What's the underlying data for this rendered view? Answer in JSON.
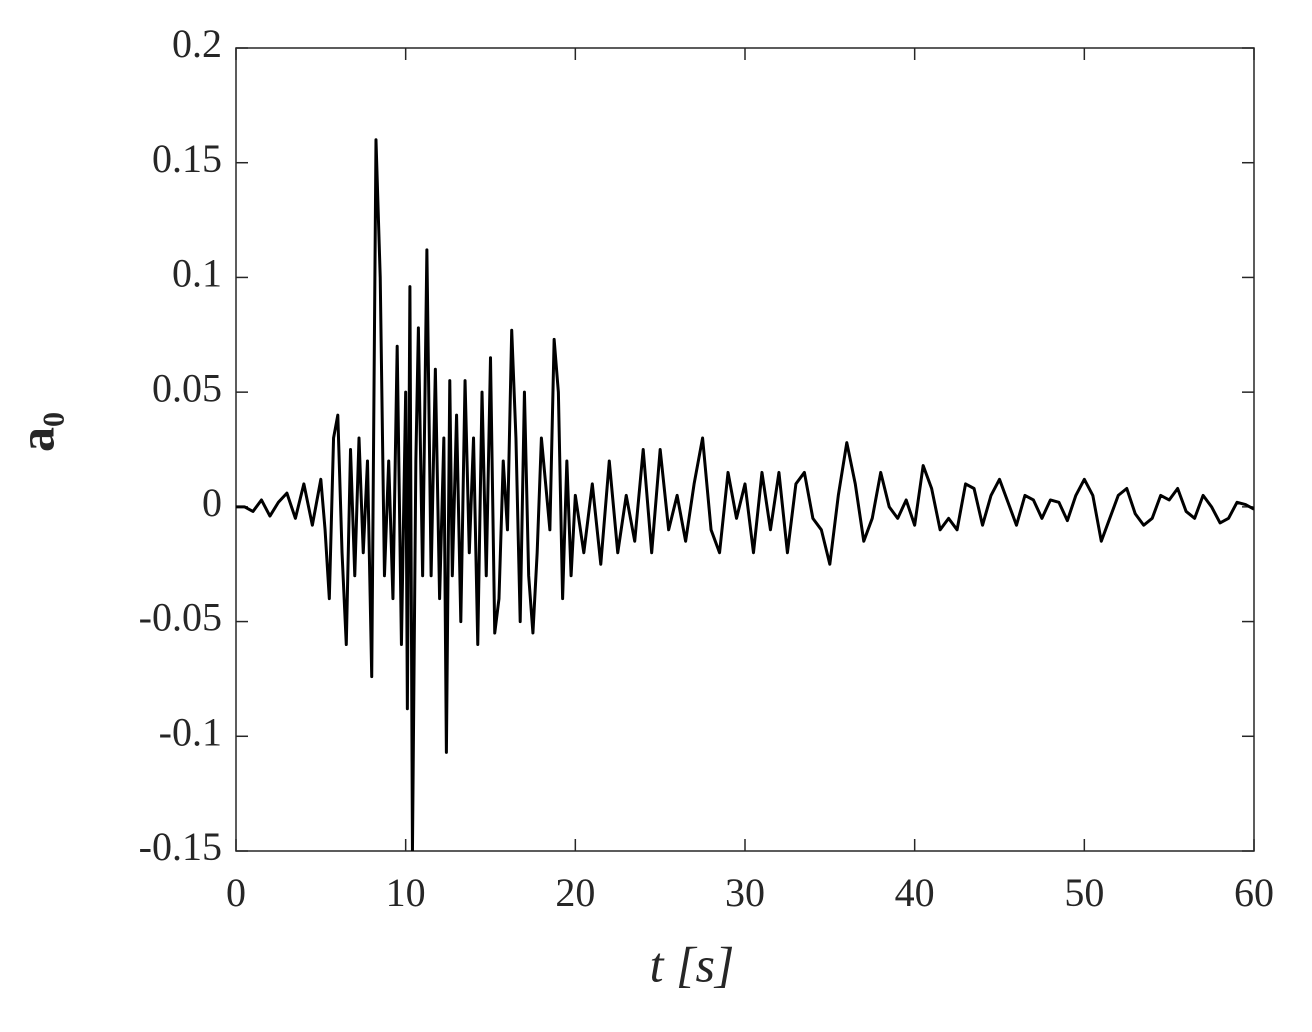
{
  "chart_data": {
    "type": "line",
    "xlabel": "t [s]",
    "ylabel": "a₀",
    "color": "#000000",
    "xlim": [
      0,
      60
    ],
    "ylim": [
      -0.15,
      0.2
    ],
    "xticks": [
      0,
      10,
      20,
      30,
      40,
      50,
      60
    ],
    "yticks": [
      -0.15,
      -0.1,
      -0.05,
      0,
      0.05,
      0.1,
      0.15,
      0.2
    ],
    "x": [
      0,
      0.5,
      1,
      1.5,
      2,
      2.5,
      3,
      3.5,
      4,
      4.5,
      5,
      5.25,
      5.5,
      5.75,
      6,
      6.25,
      6.5,
      6.75,
      7,
      7.25,
      7.5,
      7.75,
      8,
      8.25,
      8.5,
      8.75,
      9,
      9.25,
      9.5,
      9.75,
      10,
      10.1,
      10.25,
      10.4,
      10.6,
      10.75,
      11,
      11.25,
      11.5,
      11.75,
      12,
      12.25,
      12.4,
      12.6,
      12.75,
      13,
      13.25,
      13.5,
      13.75,
      14,
      14.25,
      14.5,
      14.75,
      15,
      15.25,
      15.5,
      15.75,
      16,
      16.25,
      16.5,
      16.75,
      17,
      17.25,
      17.5,
      17.75,
      18,
      18.25,
      18.5,
      18.75,
      19,
      19.25,
      19.5,
      19.75,
      20,
      20.5,
      21,
      21.5,
      22,
      22.5,
      23,
      23.5,
      24,
      24.5,
      25,
      25.5,
      26,
      26.5,
      27,
      27.5,
      28,
      28.5,
      29,
      29.5,
      30,
      30.5,
      31,
      31.5,
      32,
      32.5,
      33,
      33.5,
      34,
      34.5,
      35,
      35.5,
      36,
      36.5,
      37,
      37.5,
      38,
      38.5,
      39,
      39.5,
      40,
      40.5,
      41,
      41.5,
      42,
      42.5,
      43,
      43.5,
      44,
      44.5,
      45,
      45.5,
      46,
      46.5,
      47,
      47.5,
      48,
      48.5,
      49,
      49.5,
      50,
      50.5,
      51,
      51.5,
      52,
      52.5,
      53,
      53.5,
      54,
      54.5,
      55,
      55.5,
      56,
      56.5,
      57,
      57.5,
      58,
      58.5,
      59,
      59.5,
      60
    ],
    "values": [
      0,
      0,
      -0.002,
      0.003,
      -0.004,
      0.002,
      0.006,
      -0.005,
      0.01,
      -0.008,
      0.012,
      -0.01,
      -0.04,
      0.03,
      0.04,
      -0.02,
      -0.06,
      0.025,
      -0.03,
      0.03,
      -0.02,
      0.02,
      -0.074,
      0.16,
      0.1,
      -0.03,
      0.02,
      -0.04,
      0.07,
      -0.06,
      0.05,
      -0.088,
      0.096,
      -0.15,
      0.02,
      0.078,
      -0.03,
      0.112,
      -0.03,
      0.06,
      -0.04,
      0.03,
      -0.107,
      0.055,
      -0.03,
      0.04,
      -0.05,
      0.055,
      -0.02,
      0.03,
      -0.06,
      0.05,
      -0.03,
      0.065,
      -0.055,
      -0.04,
      0.02,
      -0.01,
      0.077,
      0.03,
      -0.05,
      0.05,
      -0.03,
      -0.055,
      -0.02,
      0.03,
      0.01,
      -0.01,
      0.073,
      0.05,
      -0.04,
      0.02,
      -0.03,
      0.005,
      -0.02,
      0.01,
      -0.025,
      0.02,
      -0.02,
      0.005,
      -0.015,
      0.025,
      -0.02,
      0.025,
      -0.01,
      0.005,
      -0.015,
      0.01,
      0.03,
      -0.01,
      -0.02,
      0.015,
      -0.005,
      0.01,
      -0.02,
      0.015,
      -0.01,
      0.015,
      -0.02,
      0.01,
      0.015,
      -0.005,
      -0.01,
      -0.025,
      0.005,
      0.028,
      0.01,
      -0.015,
      -0.005,
      0.015,
      0,
      -0.005,
      0.003,
      -0.008,
      0.018,
      0.008,
      -0.01,
      -0.005,
      -0.01,
      0.01,
      0.008,
      -0.008,
      0.005,
      0.012,
      0.002,
      -0.008,
      0.005,
      0.003,
      -0.005,
      0.003,
      0.002,
      -0.006,
      0.005,
      0.012,
      0.005,
      -0.015,
      -0.005,
      0.005,
      0.008,
      -0.003,
      -0.008,
      -0.005,
      0.005,
      0.003,
      0.008,
      -0.002,
      -0.005,
      0.005,
      0,
      -0.007,
      -0.005,
      0.002,
      0.001,
      -0.001
    ]
  }
}
